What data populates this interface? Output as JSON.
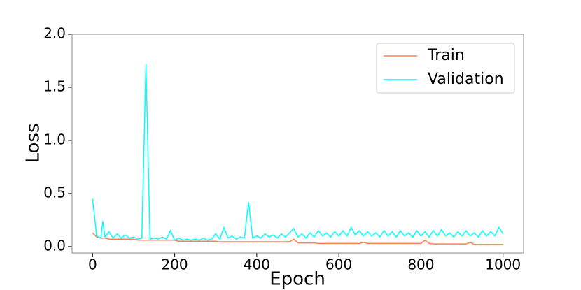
{
  "chart_data": {
    "type": "line",
    "xlabel": "Epoch",
    "ylabel": "Loss",
    "x": [
      0,
      10,
      20,
      25,
      30,
      40,
      50,
      60,
      70,
      80,
      90,
      100,
      110,
      120,
      130,
      140,
      150,
      160,
      170,
      180,
      190,
      200,
      210,
      220,
      230,
      240,
      250,
      260,
      270,
      280,
      290,
      300,
      310,
      320,
      330,
      340,
      350,
      360,
      370,
      380,
      390,
      400,
      410,
      420,
      430,
      440,
      450,
      460,
      470,
      480,
      490,
      500,
      510,
      520,
      530,
      540,
      550,
      560,
      570,
      580,
      590,
      600,
      610,
      620,
      630,
      640,
      650,
      660,
      670,
      680,
      690,
      700,
      710,
      720,
      730,
      740,
      750,
      760,
      770,
      780,
      790,
      800,
      810,
      820,
      830,
      840,
      850,
      860,
      870,
      880,
      890,
      900,
      910,
      920,
      930,
      940,
      950,
      960,
      970,
      980,
      990,
      1000
    ],
    "series": [
      {
        "name": "Train",
        "color": "#ff7f50",
        "values": [
          0.13,
          0.09,
          0.08,
          0.08,
          0.08,
          0.07,
          0.07,
          0.07,
          0.07,
          0.07,
          0.07,
          0.07,
          0.06,
          0.06,
          0.06,
          0.06,
          0.06,
          0.06,
          0.06,
          0.06,
          0.06,
          0.06,
          0.05,
          0.05,
          0.05,
          0.05,
          0.05,
          0.05,
          0.05,
          0.05,
          0.05,
          0.05,
          0.045,
          0.045,
          0.045,
          0.045,
          0.045,
          0.045,
          0.045,
          0.045,
          0.045,
          0.045,
          0.045,
          0.045,
          0.045,
          0.045,
          0.045,
          0.045,
          0.045,
          0.045,
          0.07,
          0.035,
          0.035,
          0.035,
          0.035,
          0.035,
          0.03,
          0.03,
          0.03,
          0.03,
          0.03,
          0.03,
          0.03,
          0.03,
          0.03,
          0.03,
          0.03,
          0.04,
          0.03,
          0.03,
          0.03,
          0.03,
          0.03,
          0.03,
          0.03,
          0.03,
          0.03,
          0.03,
          0.03,
          0.03,
          0.03,
          0.03,
          0.06,
          0.03,
          0.025,
          0.025,
          0.025,
          0.025,
          0.025,
          0.025,
          0.025,
          0.025,
          0.025,
          0.04,
          0.02,
          0.02,
          0.02,
          0.02,
          0.02,
          0.02,
          0.02,
          0.02
        ]
      },
      {
        "name": "Validation",
        "color": "#00ffff",
        "values": [
          0.45,
          0.1,
          0.08,
          0.24,
          0.09,
          0.14,
          0.08,
          0.12,
          0.08,
          0.11,
          0.08,
          0.09,
          0.07,
          0.08,
          1.72,
          0.07,
          0.08,
          0.07,
          0.09,
          0.07,
          0.15,
          0.06,
          0.08,
          0.06,
          0.07,
          0.06,
          0.07,
          0.06,
          0.08,
          0.06,
          0.07,
          0.12,
          0.07,
          0.18,
          0.08,
          0.1,
          0.07,
          0.09,
          0.08,
          0.42,
          0.08,
          0.1,
          0.08,
          0.12,
          0.09,
          0.11,
          0.08,
          0.12,
          0.09,
          0.13,
          0.17,
          0.09,
          0.12,
          0.08,
          0.13,
          0.09,
          0.15,
          0.1,
          0.13,
          0.09,
          0.14,
          0.1,
          0.15,
          0.1,
          0.18,
          0.11,
          0.15,
          0.1,
          0.14,
          0.1,
          0.13,
          0.09,
          0.15,
          0.1,
          0.14,
          0.09,
          0.15,
          0.1,
          0.13,
          0.09,
          0.15,
          0.1,
          0.14,
          0.09,
          0.15,
          0.1,
          0.16,
          0.1,
          0.13,
          0.09,
          0.14,
          0.1,
          0.15,
          0.1,
          0.13,
          0.09,
          0.15,
          0.1,
          0.14,
          0.1,
          0.18,
          0.12
        ]
      }
    ],
    "xlim": [
      -50,
      1050
    ],
    "ylim": [
      -0.06,
      2.0
    ],
    "xticks": [
      0,
      200,
      400,
      600,
      800,
      1000
    ],
    "yticks": [
      {
        "value": 0,
        "label": "0.0"
      },
      0.5,
      {
        "value": 1,
        "label": "1.0"
      },
      1.5,
      {
        "value": 2,
        "label": "2.0"
      }
    ],
    "legend": "upper right"
  }
}
